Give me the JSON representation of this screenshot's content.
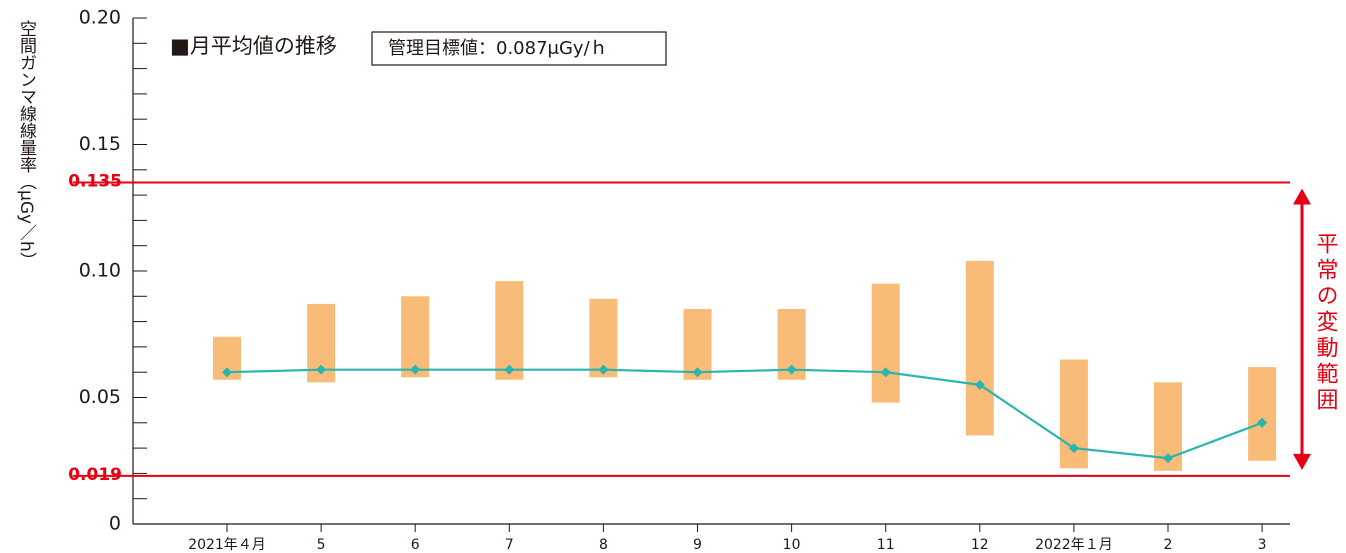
{
  "chart_data": {
    "type": "range-line",
    "title": "■月平均値の推移",
    "annotation": "管理目標値：0.087μGy/ｈ",
    "y_label": "空間ガンマ線線量率（μGy／h）",
    "range_label": "平常の変動範囲",
    "categories": [
      "2021年４月",
      "5",
      "6",
      "7",
      "8",
      "9",
      "10",
      "11",
      "12",
      "2022年１月",
      "2",
      "3"
    ],
    "series": [
      {
        "type": "range",
        "color": "#f9bb78",
        "low": [
          0.057,
          0.056,
          0.058,
          0.057,
          0.058,
          0.057,
          0.057,
          0.048,
          0.035,
          0.022,
          0.021,
          0.025
        ],
        "high": [
          0.074,
          0.087,
          0.09,
          0.096,
          0.089,
          0.085,
          0.085,
          0.095,
          0.104,
          0.065,
          0.056,
          0.062
        ]
      },
      {
        "type": "line",
        "color": "#2ab5ae",
        "values": [
          0.06,
          0.061,
          0.061,
          0.061,
          0.061,
          0.06,
          0.061,
          0.06,
          0.055,
          0.03,
          0.026,
          0.04
        ]
      }
    ],
    "reference_lines": [
      {
        "value": 0.135,
        "color": "#e60012"
      },
      {
        "value": 0.019,
        "color": "#e60012"
      }
    ],
    "ylim": [
      0,
      0.2
    ],
    "yticks": [
      0,
      {
        "value": 0.05,
        "label": "0.05"
      },
      {
        "value": 0.1,
        "label": "0.10"
      },
      0.15,
      {
        "value": 0.2,
        "label": "0.20"
      }
    ],
    "yminorticks": [
      0.01,
      0.02,
      0.03,
      0.04,
      0.06,
      0.07,
      0.08,
      0.09,
      0.11,
      0.12,
      0.13,
      0.14,
      0.16,
      0.17,
      0.18,
      0.19
    ]
  }
}
